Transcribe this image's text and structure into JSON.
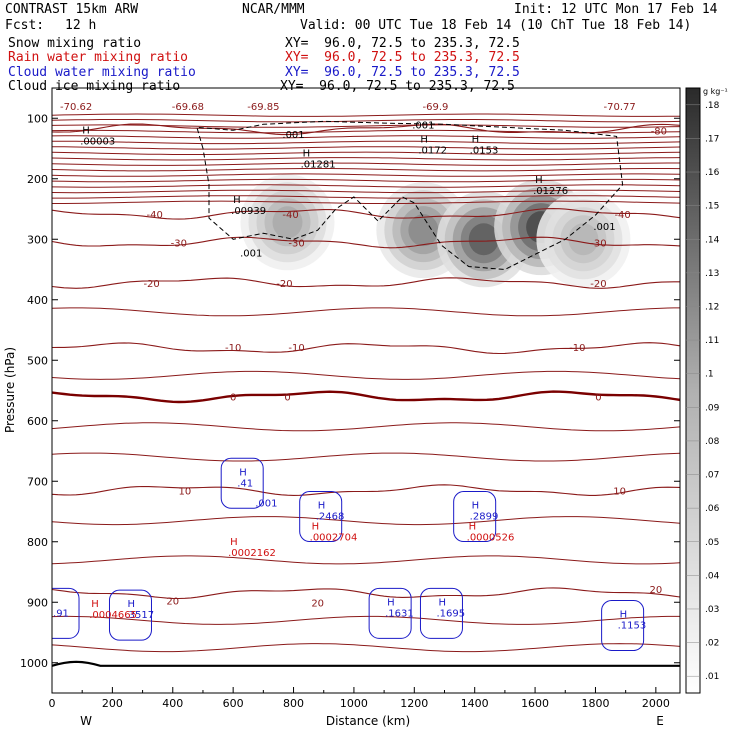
{
  "header": {
    "model": "CONTRAST 15km ARW",
    "center": "NCAR/MMM",
    "init": "Init: 12 UTC Mon 17 Feb 14",
    "fcst_label": "Fcst:",
    "fcst_value": "12 h",
    "valid": "Valid: 00 UTC Tue 18 Feb 14 (10 ChT Tue 18 Feb 14)",
    "fields": [
      {
        "name": "Snow mixing ratio",
        "xy": "XY=  96.0, 72.5 to 235.3, 72.5",
        "color": "#000000"
      },
      {
        "name": "Rain water mixing ratio",
        "xy": "XY=  96.0, 72.5 to 235.3, 72.5",
        "color": "#d01010"
      },
      {
        "name": "Cloud water mixing ratio",
        "xy": "XY=  96.0, 72.5 to 235.3, 72.5",
        "color": "#1a1ac8"
      },
      {
        "name": "Cloud ice mixing ratio",
        "xy": "XY=  96.0, 72.5 to 235.3, 72.5",
        "color": "#000000"
      }
    ]
  },
  "colors": {
    "temperature": "#8b1a1a",
    "freezing": "#7a0000",
    "rain": "#d01010",
    "cloud_water": "#1a1ac8",
    "snow": "#000000",
    "ice": "#000000"
  },
  "chart_data": {
    "type": "cross-section",
    "xlabel": "Distance (km)",
    "ylabel": "Pressure (hPa)",
    "xlim": [
      0,
      2080
    ],
    "ylim": [
      1050,
      50
    ],
    "xticks": [
      "0",
      "200",
      "400",
      "600",
      "800",
      "1000",
      "1200",
      "1400",
      "1600",
      "1800",
      "2000"
    ],
    "yticks": [
      "100",
      "200",
      "300",
      "400",
      "500",
      "600",
      "700",
      "800",
      "900",
      "1000"
    ],
    "x_end_labels": {
      "left": "W",
      "right": "E"
    },
    "colorbar": {
      "unit": "g kg⁻¹",
      "min": 0.005,
      "max": 0.185,
      "ticks": [
        ".01",
        ".02",
        ".03",
        ".04",
        ".05",
        ".06",
        ".07",
        ".08",
        ".09",
        ".1",
        ".11",
        ".12",
        ".13",
        ".14",
        ".15",
        ".16",
        ".17",
        ".18"
      ]
    },
    "shading_field": "Snow mixing ratio",
    "snow_maxima": [
      {
        "label": "H",
        "value": ".00939",
        "x": 600,
        "p": 255
      },
      {
        "label": "H",
        "value": ".01281",
        "x": 830,
        "p": 178
      },
      {
        "label": "H",
        "value": ".0172",
        "x": 1220,
        "p": 155
      },
      {
        "label": "H",
        "value": ".0153",
        "x": 1390,
        "p": 155
      },
      {
        "label": "H",
        "value": ".01276",
        "x": 1600,
        "p": 222
      },
      {
        "label": "H",
        "value": ".00003",
        "x": 100,
        "p": 140
      }
    ],
    "snow_blobs": [
      {
        "x": 780,
        "p": 272,
        "value": 0.06
      },
      {
        "x": 1230,
        "p": 285,
        "value": 0.09
      },
      {
        "x": 1430,
        "p": 300,
        "value": 0.13
      },
      {
        "x": 1620,
        "p": 280,
        "value": 0.15
      },
      {
        "x": 1760,
        "p": 300,
        "value": 0.05
      }
    ],
    "ice_contour_labels": [
      {
        "value": ".001",
        "x": 800,
        "p": 126
      },
      {
        "value": ".001",
        "x": 1230,
        "p": 110
      },
      {
        "value": ".001",
        "x": 1830,
        "p": 278
      },
      {
        "value": ".001",
        "x": 660,
        "p": 322
      }
    ],
    "temperature_contours": [
      {
        "level": "-80",
        "p": 118
      },
      {
        "level": "-40",
        "p": 258
      },
      {
        "level": "-30",
        "p": 305
      },
      {
        "level": "-20",
        "p": 372
      },
      {
        "level": "-10",
        "p": 480
      },
      {
        "level": "0",
        "p": 560
      },
      {
        "level": "10",
        "p": 715
      },
      {
        "level": "20",
        "p": 885
      }
    ],
    "temperature_labels": [
      {
        "text": "-70.62",
        "x": 80,
        "p": 80
      },
      {
        "text": "-69.68",
        "x": 450,
        "p": 80
      },
      {
        "text": "-69.85",
        "x": 700,
        "p": 80
      },
      {
        "text": "-69.9",
        "x": 1270,
        "p": 80
      },
      {
        "text": "-70.77",
        "x": 1880,
        "p": 80
      },
      {
        "text": "-80",
        "x": 2010,
        "p": 120
      },
      {
        "text": "-40",
        "x": 340,
        "p": 258
      },
      {
        "text": "-40",
        "x": 790,
        "p": 258
      },
      {
        "text": "-40",
        "x": 1890,
        "p": 258
      },
      {
        "text": "-30",
        "x": 420,
        "p": 305
      },
      {
        "text": "-30",
        "x": 810,
        "p": 305
      },
      {
        "text": "-30",
        "x": 1810,
        "p": 305
      },
      {
        "text": "-20",
        "x": 330,
        "p": 372
      },
      {
        "text": "-20",
        "x": 770,
        "p": 372
      },
      {
        "text": "-20",
        "x": 1810,
        "p": 372
      },
      {
        "text": "-10",
        "x": 600,
        "p": 478
      },
      {
        "text": "-10",
        "x": 810,
        "p": 478
      },
      {
        "text": "-10",
        "x": 1740,
        "p": 478
      },
      {
        "text": "0",
        "x": 600,
        "p": 560
      },
      {
        "text": "0",
        "x": 780,
        "p": 560
      },
      {
        "text": "0",
        "x": 1810,
        "p": 560
      },
      {
        "text": "10",
        "x": 440,
        "p": 715
      },
      {
        "text": "10",
        "x": 1880,
        "p": 715
      },
      {
        "text": "20",
        "x": 400,
        "p": 897
      },
      {
        "text": "20",
        "x": 880,
        "p": 900
      },
      {
        "text": "20",
        "x": 2000,
        "p": 878
      }
    ],
    "cloud_water_maxima": [
      {
        "label": "H",
        "value": ".41",
        "x": 620,
        "p": 705
      },
      {
        "label": "H",
        "value": ".2468",
        "x": 880,
        "p": 760
      },
      {
        "label": "H",
        "value": ".2899",
        "x": 1390,
        "p": 760
      },
      {
        "label": "H",
        "value": ".3517",
        "x": 250,
        "p": 923
      },
      {
        "label": "H",
        "value": ".1631",
        "x": 1110,
        "p": 920
      },
      {
        "label": "H",
        "value": ".1695",
        "x": 1280,
        "p": 920
      },
      {
        "label": "H",
        "value": ".1153",
        "x": 1880,
        "p": 940
      },
      {
        "label": "",
        "value": ".91",
        "x": 10,
        "p": 920
      }
    ],
    "cloud_water_contour_labels": [
      {
        "value": ".001",
        "x": 710,
        "p": 735
      }
    ],
    "rain_maxima": [
      {
        "label": "H",
        "value": ".0002704",
        "x": 860,
        "p": 795
      },
      {
        "label": "H",
        "value": ".0000526",
        "x": 1380,
        "p": 795
      },
      {
        "label": "H",
        "value": ".0002162",
        "x": 590,
        "p": 820
      },
      {
        "label": "H",
        "value": ".0004665",
        "x": 130,
        "p": 923
      }
    ]
  }
}
